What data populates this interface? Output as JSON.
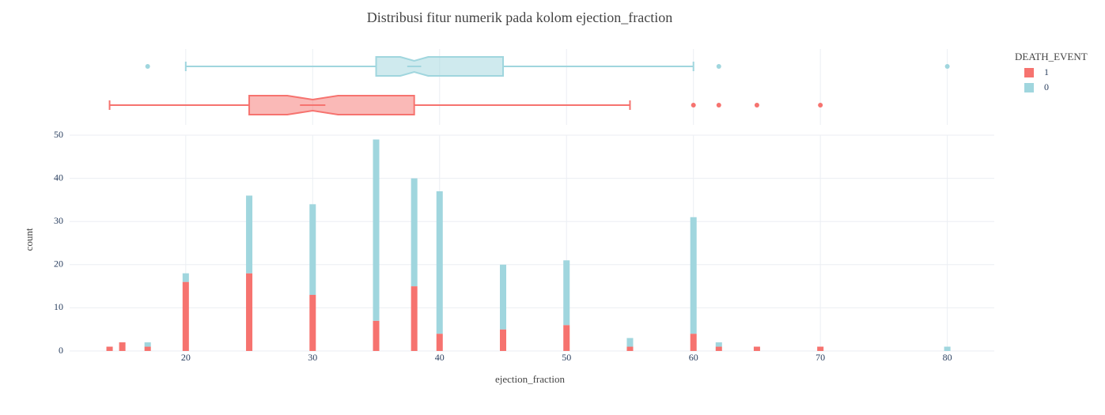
{
  "chart_data": {
    "type": "bar",
    "stacked": true,
    "title": "Distribusi fitur numerik pada kolom ejection_fraction",
    "xlabel": "ejection_fraction",
    "ylabel": "count",
    "legend_title": "DEATH_EVENT",
    "legend_position": "right",
    "x": [
      14,
      15,
      17,
      20,
      25,
      30,
      35,
      38,
      40,
      45,
      50,
      55,
      60,
      62,
      65,
      70,
      80
    ],
    "series": [
      {
        "name": "1",
        "color": "#f6736f",
        "values": [
          1,
          2,
          1,
          16,
          18,
          13,
          7,
          15,
          4,
          5,
          6,
          1,
          4,
          1,
          1,
          1,
          0
        ],
        "box": {
          "lowerfence": 14,
          "q1": 25,
          "median": 30,
          "q3": 38,
          "upperfence": 55,
          "notch": [
            28,
            32
          ],
          "outliers": [
            60,
            62,
            65,
            70
          ]
        }
      },
      {
        "name": "0",
        "color": "#a0d6de",
        "values": [
          0,
          0,
          1,
          2,
          18,
          21,
          42,
          25,
          33,
          15,
          15,
          2,
          27,
          1,
          0,
          0,
          1
        ],
        "box": {
          "lowerfence": 20,
          "q1": 35,
          "median": 38,
          "q3": 45,
          "upperfence": 60,
          "notch": [
            36.9,
            39.1
          ],
          "outliers": [
            17,
            62,
            80
          ]
        }
      }
    ],
    "xlim": [
      10.85,
      83.7
    ],
    "xticks": [
      20,
      30,
      40,
      50,
      60,
      70,
      80
    ],
    "ylim": [
      0,
      50
    ],
    "yticks": [
      0,
      10,
      20,
      30,
      40,
      50
    ],
    "grid": true
  }
}
